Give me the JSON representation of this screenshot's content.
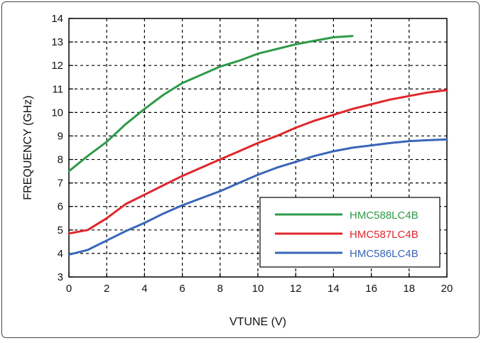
{
  "chart_data": {
    "type": "line",
    "title": "",
    "xlabel": "VTUNE (V)",
    "ylabel": "FREQUENCY (GHz)",
    "xlim": [
      0,
      20
    ],
    "ylim": [
      3,
      14
    ],
    "xticks": [
      0,
      2,
      4,
      6,
      8,
      10,
      12,
      14,
      16,
      18,
      20
    ],
    "yticks": [
      3,
      4,
      5,
      6,
      7,
      8,
      9,
      10,
      11,
      12,
      13,
      14
    ],
    "grid": true,
    "legend_position": "bottom-right",
    "series": [
      {
        "name": "HMC588LC4B",
        "color": "#2e9a48",
        "x": [
          0,
          1,
          2,
          3,
          4,
          5,
          6,
          7,
          8,
          9,
          10,
          11,
          12,
          13,
          14,
          15
        ],
        "y": [
          7.5,
          8.15,
          8.75,
          9.5,
          10.15,
          10.75,
          11.25,
          11.6,
          11.95,
          12.2,
          12.5,
          12.7,
          12.9,
          13.05,
          13.2,
          13.25
        ]
      },
      {
        "name": "HMC587LC4B",
        "color": "#e0262b",
        "x": [
          0,
          1,
          2,
          3,
          4,
          5,
          6,
          7,
          8,
          9,
          10,
          11,
          12,
          13,
          14,
          15,
          16,
          17,
          18,
          19,
          20
        ],
        "y": [
          4.85,
          5.0,
          5.5,
          6.1,
          6.5,
          6.9,
          7.3,
          7.65,
          8.0,
          8.35,
          8.7,
          9.0,
          9.35,
          9.65,
          9.9,
          10.15,
          10.35,
          10.55,
          10.7,
          10.85,
          10.95
        ]
      },
      {
        "name": "HMC586LC4B",
        "color": "#3a66b8",
        "x": [
          0,
          1,
          2,
          3,
          4,
          5,
          6,
          7,
          8,
          9,
          10,
          11,
          12,
          13,
          14,
          15,
          16,
          17,
          18,
          19,
          20
        ],
        "y": [
          3.95,
          4.15,
          4.55,
          4.95,
          5.3,
          5.7,
          6.05,
          6.35,
          6.65,
          7.0,
          7.35,
          7.65,
          7.9,
          8.15,
          8.35,
          8.5,
          8.6,
          8.7,
          8.78,
          8.82,
          8.85
        ]
      }
    ]
  }
}
